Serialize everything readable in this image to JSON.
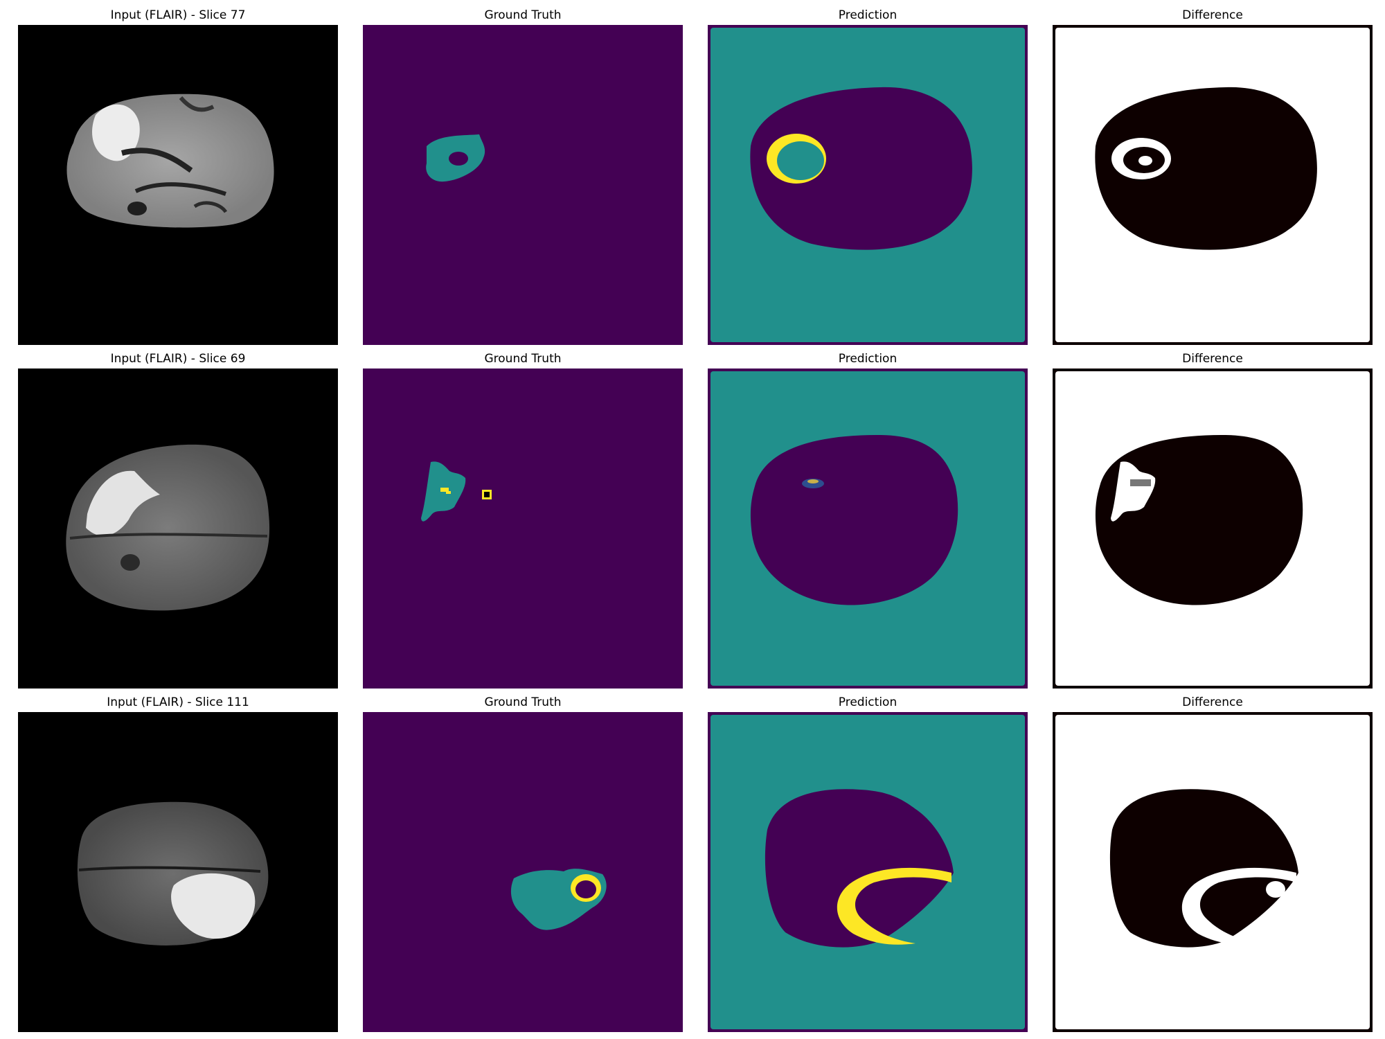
{
  "figure": {
    "rows": [
      {
        "panels": [
          {
            "kind": "input",
            "title": "Input (FLAIR) - Slice 77"
          },
          {
            "kind": "ground-truth",
            "title": "Ground Truth"
          },
          {
            "kind": "prediction",
            "title": "Prediction"
          },
          {
            "kind": "difference",
            "title": "Difference"
          }
        ]
      },
      {
        "panels": [
          {
            "kind": "input",
            "title": "Input (FLAIR) - Slice 69"
          },
          {
            "kind": "ground-truth",
            "title": "Ground Truth"
          },
          {
            "kind": "prediction",
            "title": "Prediction"
          },
          {
            "kind": "difference",
            "title": "Difference"
          }
        ]
      },
      {
        "panels": [
          {
            "kind": "input",
            "title": "Input (FLAIR) - Slice 111"
          },
          {
            "kind": "ground-truth",
            "title": "Ground Truth"
          },
          {
            "kind": "prediction",
            "title": "Prediction"
          },
          {
            "kind": "difference",
            "title": "Difference"
          }
        ]
      }
    ]
  },
  "colors": {
    "background": "#440154",
    "label_1": "#21908c",
    "label_2": "#fde725",
    "difference_background": "#ffffff",
    "difference_match": "#0d0000"
  }
}
